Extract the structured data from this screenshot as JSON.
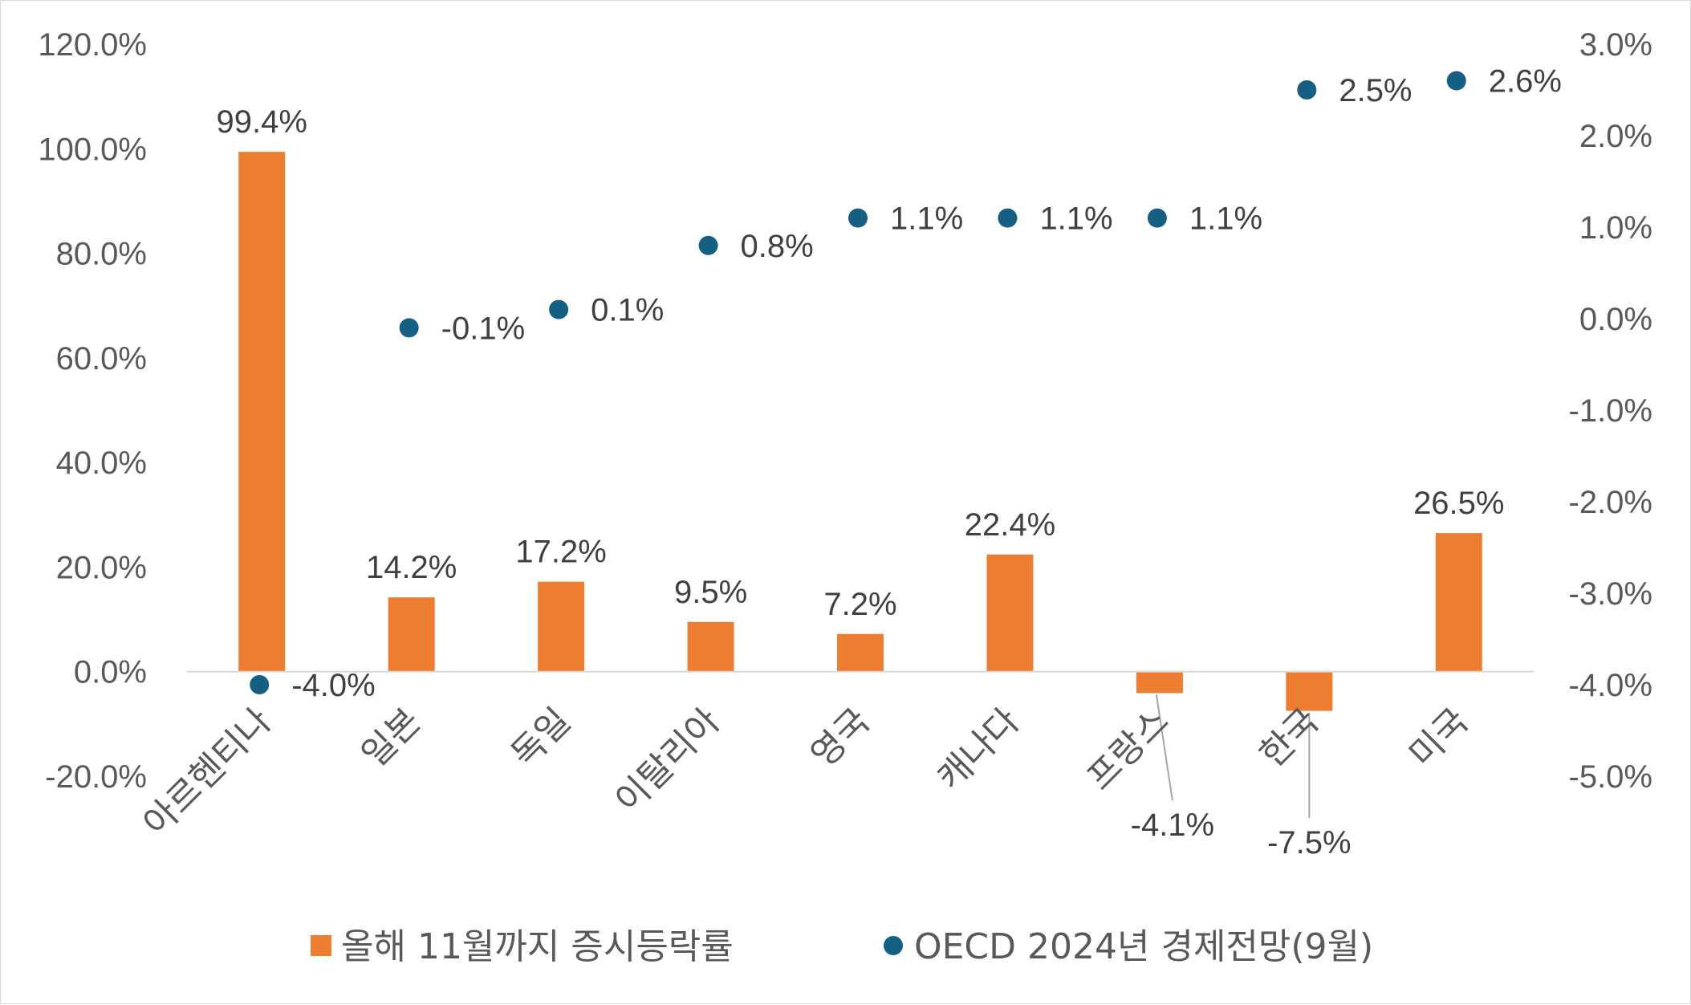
{
  "chart_data": {
    "type": "bar",
    "categories": [
      "아르헨티나",
      "일본",
      "독일",
      "이탈리아",
      "영국",
      "캐나다",
      "프랑스",
      "한국",
      "미국"
    ],
    "series": [
      {
        "name": "올해 11월까지 증시등락률",
        "kind": "bar",
        "axis": "left",
        "color": "#ED7D31",
        "values": [
          99.4,
          14.2,
          17.2,
          9.5,
          7.2,
          22.4,
          -4.1,
          -7.5,
          26.5
        ],
        "labels": [
          "99.4%",
          "14.2%",
          "17.2%",
          "9.5%",
          "7.2%",
          "22.4%",
          "-4.1%",
          "-7.5%",
          "26.5%"
        ]
      },
      {
        "name": "OECD 2024년 경제전망(9월)",
        "kind": "scatter",
        "axis": "right",
        "color": "#156082",
        "values": [
          -4.0,
          -0.1,
          0.1,
          0.8,
          1.1,
          1.1,
          1.1,
          2.5,
          2.6
        ],
        "labels": [
          "-4.0%",
          "-0.1%",
          "0.1%",
          "0.8%",
          "1.1%",
          "1.1%",
          "1.1%",
          "2.5%",
          "2.6%"
        ]
      }
    ],
    "y_left": {
      "ylim": [
        -20,
        120
      ],
      "ticks": [
        "-20.0%",
        "0.0%",
        "20.0%",
        "40.0%",
        "60.0%",
        "80.0%",
        "100.0%",
        "120.0%"
      ]
    },
    "y_right": {
      "ylim": [
        -5,
        3
      ],
      "ticks": [
        "-5.0%",
        "-4.0%",
        "-3.0%",
        "-2.0%",
        "-1.0%",
        "0.0%",
        "1.0%",
        "2.0%",
        "3.0%"
      ]
    },
    "grid": false,
    "legend_position": "bottom"
  }
}
